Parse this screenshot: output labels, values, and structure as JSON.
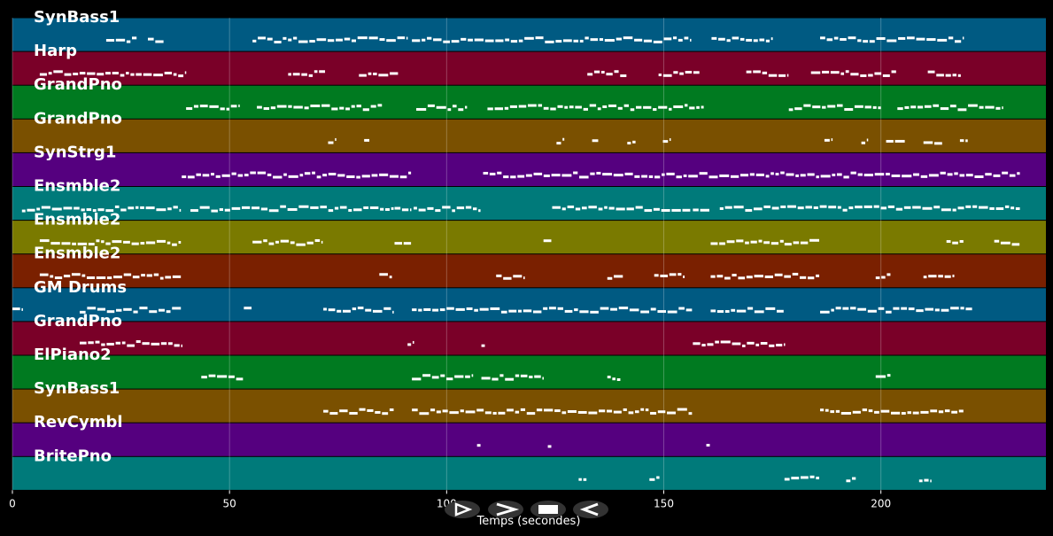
{
  "chart_data": {
    "type": "piano-roll",
    "xlabel": "Temps (secondes)",
    "xlim": [
      0,
      238
    ],
    "xticks": [
      0,
      50,
      100,
      150,
      200
    ],
    "grid": true,
    "note_color": "#ffffff",
    "tracks": [
      {
        "name": "SynBass1",
        "color": "#005a82",
        "notes": [
          [
            21.6,
            28.8
          ],
          [
            31.2,
            35
          ],
          [
            55.3,
            91
          ],
          [
            92,
            156.3
          ],
          [
            161,
            175.3
          ],
          [
            186,
            219.2
          ]
        ]
      },
      {
        "name": "Harp",
        "color": "#7a0028",
        "notes": [
          [
            6.3,
            39.9
          ],
          [
            63.5,
            72.2
          ],
          [
            79.8,
            89
          ],
          [
            132.4,
            141.6
          ],
          [
            148.8,
            158.4
          ],
          [
            169,
            178.8
          ],
          [
            183.9,
            203.7
          ],
          [
            210.8,
            218.6
          ]
        ]
      },
      {
        "name": "GrandPno",
        "color": "#007a20",
        "notes": [
          [
            40,
            52.2
          ],
          [
            56.3,
            85.3
          ],
          [
            93,
            104.9
          ],
          [
            109.4,
            159.4
          ],
          [
            178.8,
            200.2
          ],
          [
            203.8,
            228.3
          ]
        ]
      },
      {
        "name": "GrandPno",
        "color": "#7a5000",
        "notes": [
          [
            72.7,
            74.7
          ],
          [
            81,
            82.4
          ],
          [
            125.3,
            127.3
          ],
          [
            133.5,
            135.1
          ],
          [
            141.6,
            143.7
          ],
          [
            149.8,
            151.4
          ],
          [
            187,
            189
          ],
          [
            195.5,
            197.1
          ],
          [
            201.2,
            205.7
          ],
          [
            209.8,
            214.3
          ],
          [
            218.2,
            220.2
          ]
        ]
      },
      {
        "name": "SynStrg1",
        "color": "#55007f",
        "notes": [
          [
            39,
            92
          ],
          [
            108.4,
            232.2
          ]
        ]
      },
      {
        "name": "Ensmble2",
        "color": "#007a7a",
        "notes": [
          [
            2.2,
            39
          ],
          [
            41,
            88
          ],
          [
            88,
            92
          ],
          [
            92.4,
            108
          ],
          [
            124.3,
            156.3
          ],
          [
            156.7,
            160.8
          ],
          [
            162.9,
            232.2
          ]
        ]
      },
      {
        "name": "Ensmble2",
        "color": "#7a7a00",
        "notes": [
          [
            6.3,
            39
          ],
          [
            55.3,
            71.6
          ],
          [
            88,
            92
          ],
          [
            122.3,
            124.3
          ],
          [
            160.8,
            177.8
          ],
          [
            177.8,
            186
          ],
          [
            215.1,
            219.2
          ],
          [
            226.1,
            232.2
          ]
        ]
      },
      {
        "name": "Ensmble2",
        "color": "#7a2000",
        "notes": [
          [
            6.3,
            39
          ],
          [
            84.5,
            87.6
          ],
          [
            111.4,
            118.2
          ],
          [
            137,
            140.8
          ],
          [
            147.8,
            155
          ],
          [
            160.8,
            186
          ],
          [
            198.8,
            202.4
          ],
          [
            209.8,
            217.1
          ]
        ]
      },
      {
        "name": "GM Drums",
        "color": "#005a82",
        "notes": [
          [
            0,
            2.2
          ],
          [
            15.5,
            39
          ],
          [
            53.3,
            55.3
          ],
          [
            71.6,
            88
          ],
          [
            92,
            156.7
          ],
          [
            160.8,
            177.8
          ],
          [
            186,
            221.2
          ]
        ]
      },
      {
        "name": "GrandPno",
        "color": "#7a0028",
        "notes": [
          [
            15.5,
            39
          ],
          [
            91,
            92.7
          ],
          [
            108,
            109
          ],
          [
            156.7,
            177.8
          ]
        ]
      },
      {
        "name": "ElPiano2",
        "color": "#007a20",
        "notes": [
          [
            43.5,
            53.3
          ],
          [
            92,
            106.3
          ],
          [
            108,
            122.3
          ],
          [
            137,
            140.2
          ],
          [
            198.8,
            202.4
          ]
        ]
      },
      {
        "name": "SynBass1",
        "color": "#7a5000",
        "notes": [
          [
            71.6,
            88
          ],
          [
            92,
            156.7
          ],
          [
            186,
            219.2
          ]
        ]
      },
      {
        "name": "RevCymbl",
        "color": "#55007f",
        "notes": [
          [
            107,
            108
          ],
          [
            123.3,
            124.3
          ],
          [
            159.8,
            160.8
          ]
        ]
      },
      {
        "name": "BritePno",
        "color": "#007a7a",
        "notes": [
          [
            130.4,
            132.4
          ],
          [
            146.7,
            149.2
          ],
          [
            177.8,
            186
          ],
          [
            192,
            194.5
          ],
          [
            208.8,
            211.4
          ]
        ]
      }
    ]
  },
  "controls": [
    {
      "name": "play",
      "icon": "play-outline-icon"
    },
    {
      "name": "forward",
      "icon": "chevron-right-icon"
    },
    {
      "name": "stop",
      "icon": "stop-icon"
    },
    {
      "name": "rewind",
      "icon": "triangle-left-icon"
    }
  ]
}
